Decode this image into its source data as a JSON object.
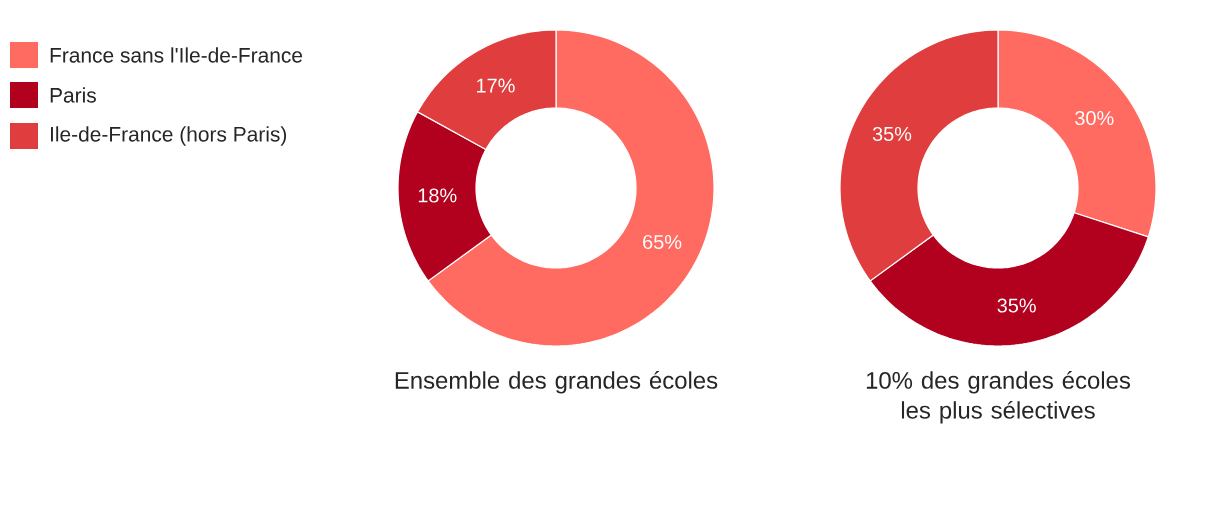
{
  "chart_data": [
    {
      "type": "donut",
      "title": "Ensemble des grandes écoles",
      "categories": [
        "France sans l'Ile-de-France",
        "Paris",
        "Ile-de-France (hors Paris)"
      ],
      "values": [
        65,
        18,
        17
      ],
      "value_labels": [
        "65%",
        "18%",
        "17%"
      ],
      "colors": [
        "#ff6b61",
        "#b2001f",
        "#e03e3e"
      ],
      "legend": "left"
    },
    {
      "type": "donut",
      "title": "10% des grandes écoles les plus sélectives",
      "values": [
        30,
        35,
        35
      ],
      "value_labels": [
        "30%",
        "35%",
        "35%"
      ],
      "colors": [
        "#ff6b61",
        "#b2001f",
        "#e03e3e"
      ]
    }
  ]
}
